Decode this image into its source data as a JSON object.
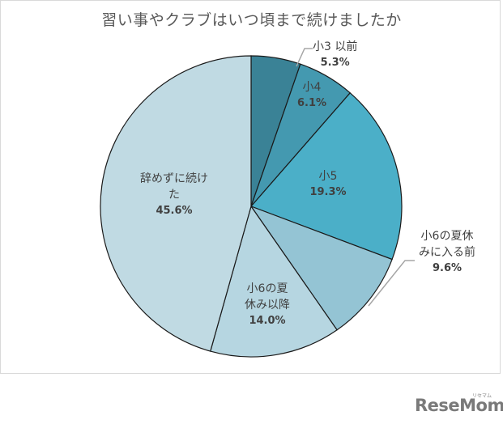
{
  "chart_data": {
    "type": "pie",
    "title": "習い事やクラブはいつ頃まで続けましたか",
    "start_angle_deg": 0,
    "direction": "clockwise",
    "categories": [
      "小3以前",
      "小4",
      "小5",
      "小6の夏休みに入る前",
      "小6の夏休み以降",
      "辞めずに続けた"
    ],
    "values": [
      5.3,
      6.1,
      19.3,
      9.6,
      14.0,
      45.6
    ],
    "value_labels": [
      "5.3%",
      "6.1%",
      "19.3%",
      "9.6%",
      "14.0%",
      "45.6%"
    ],
    "colors": [
      "#3a8296",
      "#4499b0",
      "#4bafc8",
      "#94c4d4",
      "#b6d6e1",
      "#c0dae3"
    ],
    "legend": "none",
    "label_position": "inside/outside with leader lines"
  },
  "labels": [
    {
      "name_lines": [
        "小3 以前"
      ],
      "pct": "5.3%"
    },
    {
      "name_lines": [
        "小4"
      ],
      "pct": "6.1%"
    },
    {
      "name_lines": [
        "小5"
      ],
      "pct": "19.3%"
    },
    {
      "name_lines": [
        "小6の夏休",
        "みに入る前"
      ],
      "pct": "9.6%"
    },
    {
      "name_lines": [
        "小6の夏",
        "休み以降"
      ],
      "pct": "14.0%"
    },
    {
      "name_lines": [
        "辞めずに続け",
        "た"
      ],
      "pct": "45.6%"
    }
  ],
  "watermark": {
    "text": "ReseMom",
    "sub": "リセマム"
  }
}
